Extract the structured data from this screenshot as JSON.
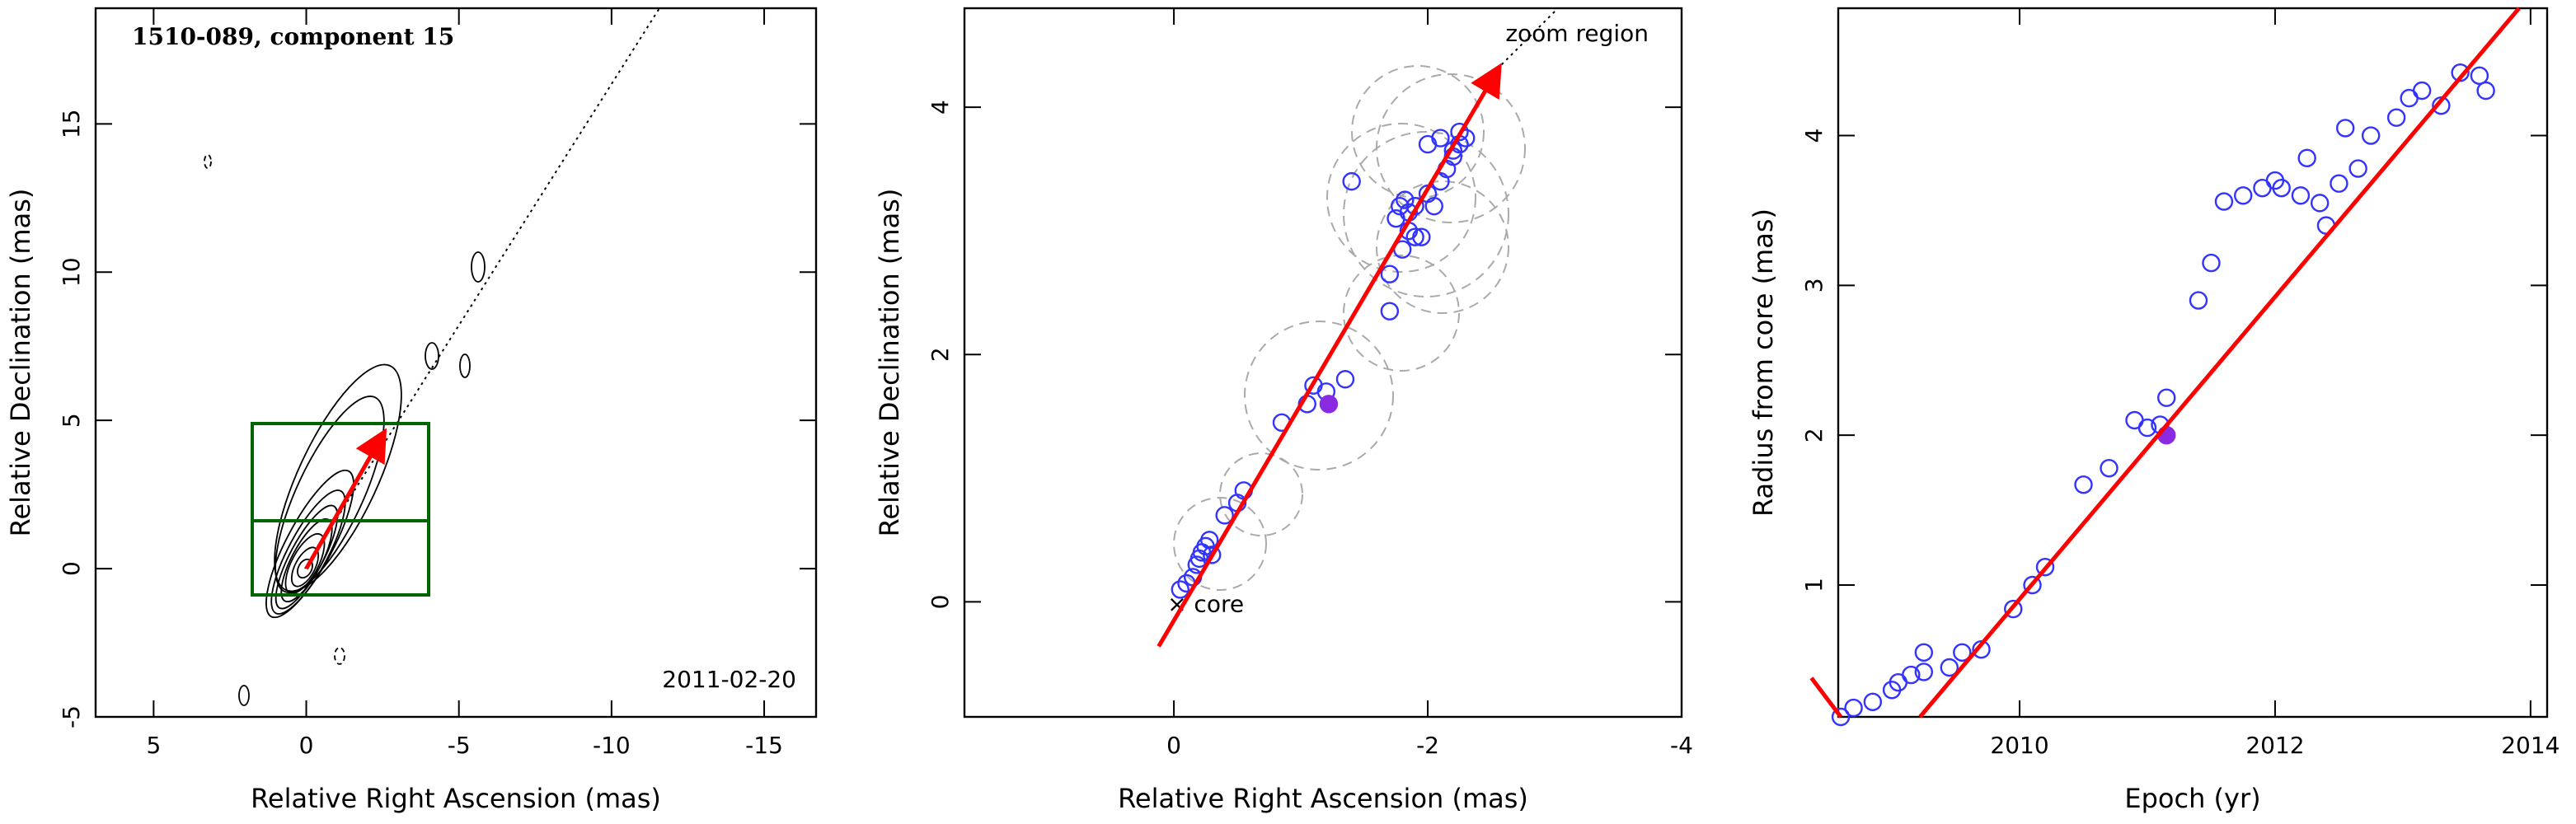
{
  "chart_data": [
    {
      "type": "contour",
      "label": "1510-089, component 15",
      "date": "2011-02-20",
      "xlabel": "Relative Right Ascension (mas)",
      "ylabel": "Relative Declination (mas)",
      "xlim": [
        6.9,
        -16.7
      ],
      "ylim": [
        -5,
        18.9
      ],
      "xticks": [
        5,
        0,
        -5,
        -10,
        -15
      ],
      "yticks": [
        -5,
        0,
        5,
        10,
        15
      ],
      "arrow": {
        "color": "#ff0000",
        "x": [
          0,
          -2.5
        ],
        "values": [
          0,
          4.5
        ]
      }
    },
    {
      "type": "scatter",
      "annotations": [
        "zoom region",
        "core"
      ],
      "xlabel": "Relative Right Ascension (mas)",
      "ylabel": "Relative Declination (mas)",
      "xlim": [
        1.65,
        -4
      ],
      "ylim": [
        -0.93,
        4.8
      ],
      "xticks": [
        0,
        -2,
        -4
      ],
      "yticks": [
        0,
        2,
        4
      ],
      "series": [
        {
          "color": "#3333ff",
          "filled": false,
          "x": [
            -0.05,
            -0.1,
            -0.15,
            -0.18,
            -0.2,
            -0.22,
            -0.25,
            -0.28,
            -0.3,
            -0.4,
            -0.5,
            -0.55,
            -0.85,
            -1.05,
            -1.1,
            -1.2,
            -1.35,
            -1.7,
            -1.7,
            -1.8,
            -1.85,
            -1.9,
            -1.95,
            -1.75,
            -1.78,
            -1.82,
            -1.9,
            -2.0,
            -2.05,
            -2.1,
            -2.15,
            -2.2,
            -2.0,
            -2.1,
            -2.2,
            -2.25,
            -2.3,
            -2.25,
            -1.4,
            -1.85
          ],
          "values": [
            0.1,
            0.15,
            0.2,
            0.3,
            0.35,
            0.4,
            0.45,
            0.5,
            0.38,
            0.7,
            0.8,
            0.9,
            1.45,
            1.6,
            1.75,
            1.7,
            1.8,
            2.35,
            2.65,
            2.85,
            3.0,
            2.95,
            2.95,
            3.1,
            3.2,
            3.25,
            3.2,
            3.3,
            3.2,
            3.4,
            3.5,
            3.6,
            3.7,
            3.75,
            3.65,
            3.7,
            3.75,
            3.8,
            3.4,
            3.15
          ]
        },
        {
          "color": "#8a2be2",
          "filled": true,
          "x": [
            -1.22
          ],
          "values": [
            1.6
          ]
        }
      ],
      "arrow": {
        "color": "#ff0000",
        "x": [
          0.12,
          -2.55
        ],
        "values": [
          -0.36,
          4.3
        ]
      }
    },
    {
      "type": "scatter",
      "xlabel": "Epoch (yr)",
      "ylabel": "Radius from core (mas)",
      "xlim": [
        2008.58,
        2014.13
      ],
      "ylim": [
        0.12,
        4.85
      ],
      "xticks": [
        2010,
        2012,
        2014
      ],
      "yticks": [
        1,
        2,
        3,
        4
      ],
      "series": [
        {
          "color": "#3333ff",
          "filled": false,
          "x": [
            2008.6,
            2008.7,
            2008.85,
            2009.0,
            2009.05,
            2009.15,
            2009.25,
            2009.25,
            2009.45,
            2009.55,
            2009.7,
            2009.95,
            2010.1,
            2010.2,
            2010.5,
            2010.7,
            2010.9,
            2011.0,
            2011.1,
            2011.15,
            2011.4,
            2011.5,
            2011.6,
            2011.75,
            2011.9,
            2012.0,
            2012.05,
            2012.2,
            2012.25,
            2012.35,
            2012.4,
            2012.5,
            2012.55,
            2012.65,
            2012.75,
            2012.95,
            2013.05,
            2013.15,
            2013.3,
            2013.45,
            2013.6,
            2013.65
          ],
          "values": [
            0.12,
            0.18,
            0.22,
            0.3,
            0.35,
            0.4,
            0.55,
            0.42,
            0.45,
            0.55,
            0.57,
            0.84,
            1.0,
            1.12,
            1.67,
            1.78,
            2.1,
            2.05,
            2.07,
            2.25,
            2.9,
            3.15,
            3.56,
            3.6,
            3.65,
            3.7,
            3.65,
            3.6,
            3.85,
            3.55,
            3.4,
            3.68,
            4.05,
            3.78,
            4.0,
            4.12,
            4.25,
            4.3,
            4.2,
            4.42,
            4.4,
            4.3
          ]
        },
        {
          "color": "#8a2be2",
          "filled": true,
          "x": [
            2011.15
          ],
          "values": [
            2.0
          ]
        }
      ],
      "lines": [
        {
          "color": "#ff0000",
          "x": [
            2009.22,
            2013.91
          ],
          "values": [
            0.12,
            4.85
          ]
        },
        {
          "color": "#ff0000",
          "x": [
            2008.37,
            2008.6
          ],
          "values": [
            0.38,
            0.12
          ]
        }
      ]
    }
  ]
}
